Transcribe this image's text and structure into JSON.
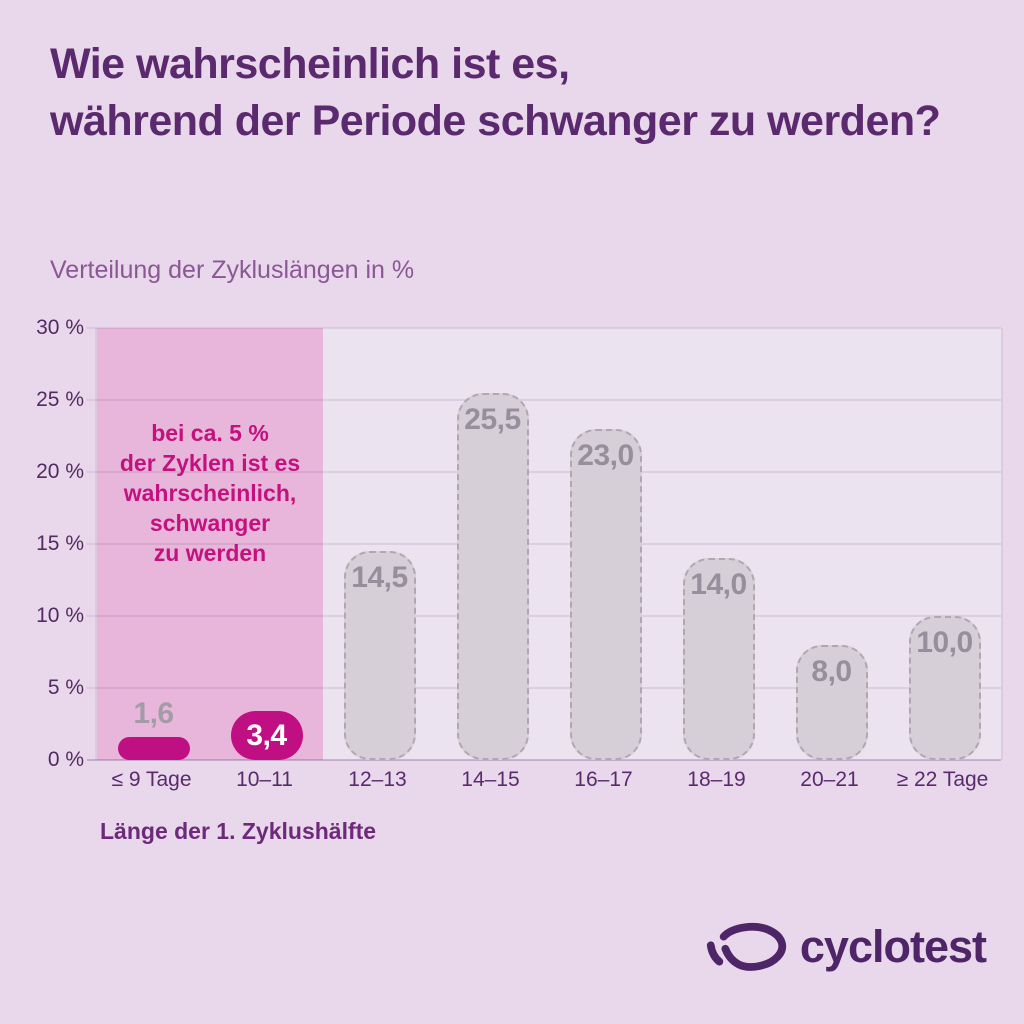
{
  "page": {
    "title": "Wie wahrscheinlich ist es,\nwährend der Periode schwanger zu werden?",
    "subtitle": "Verteilung der Zykluslängen in %"
  },
  "chart_data": {
    "type": "bar",
    "title": "Verteilung der Zykluslängen in %",
    "xlabel": "Länge der 1. Zyklushälfte",
    "ylabel": "",
    "ylim": [
      0,
      30
    ],
    "ytick_step": 5,
    "yticks": [
      "30 %",
      "25 %",
      "20 %",
      "15 %",
      "10 %",
      "5 %",
      "0 %"
    ],
    "grid": true,
    "legend": "none",
    "categories": [
      "≤ 9 Tage",
      "10–11",
      "12–13",
      "14–15",
      "16–17",
      "18–19",
      "20–21",
      "≥ 22 Tage"
    ],
    "values": [
      1.6,
      3.4,
      14.5,
      25.5,
      23.0,
      14.0,
      8.0,
      10.0
    ],
    "bars": [
      {
        "category": "≤ 9 Tage",
        "value": 1.6,
        "label": "1,6",
        "style": "accent",
        "label_pos": "above"
      },
      {
        "category": "10–11",
        "value": 3.4,
        "label": "3,4",
        "style": "accent",
        "label_pos": "inside-center"
      },
      {
        "category": "12–13",
        "value": 14.5,
        "label": "14,5",
        "style": "muted",
        "label_pos": "inside-top"
      },
      {
        "category": "14–15",
        "value": 25.5,
        "label": "25,5",
        "style": "muted",
        "label_pos": "inside-top"
      },
      {
        "category": "16–17",
        "value": 23.0,
        "label": "23,0",
        "style": "muted",
        "label_pos": "inside-top"
      },
      {
        "category": "18–19",
        "value": 14.0,
        "label": "14,0",
        "style": "muted",
        "label_pos": "inside-top"
      },
      {
        "category": "20–21",
        "value": 8.0,
        "label": "8,0",
        "style": "muted",
        "label_pos": "inside-top"
      },
      {
        "category": "≥ 22 Tage",
        "value": 10.0,
        "label": "10,0",
        "style": "muted",
        "label_pos": "inside-top"
      }
    ],
    "highlight_region": {
      "covers_categories": [
        "≤ 9 Tage",
        "10–11"
      ],
      "annotation": "bei ca. 5 %\nder Zyklen ist es\nwahrscheinlich,\nschwanger\nzu werden"
    },
    "colors": {
      "background": "#e9d8eb",
      "plot_background": "#ece3f0",
      "highlight_region": "#e8b6da",
      "accent_bar": "#c00f82",
      "muted_bar": "#d6cfd8",
      "muted_bar_border": "#b0a7b3",
      "annotation_text": "#c3117f",
      "title_text": "#5b2a6e",
      "brand_text": "#4e2566"
    }
  },
  "footer": {
    "brand": "cyclotest",
    "logo_icon": "cyclotest-pick-icon"
  }
}
